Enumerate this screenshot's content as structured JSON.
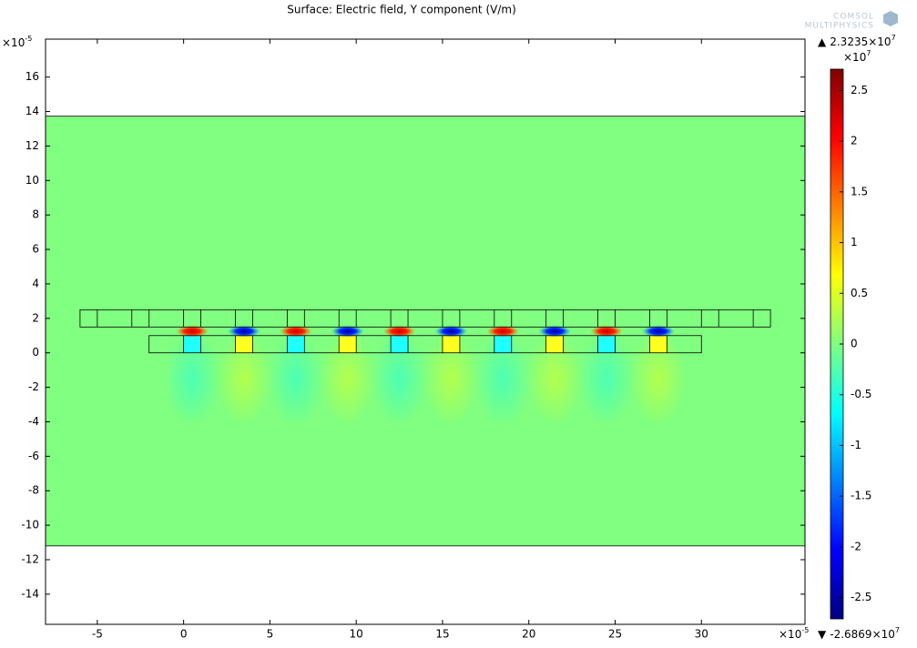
{
  "chart_data": {
    "type": "surface",
    "title": "Surface: Electric field, Y component (V/m)",
    "xlim": [
      -8,
      36
    ],
    "ylim": [
      -15.75,
      18.2
    ],
    "xticks": [
      -5,
      0,
      5,
      10,
      15,
      20,
      25,
      30
    ],
    "yticks": [
      -14,
      -12,
      -10,
      -8,
      -6,
      -4,
      -2,
      0,
      2,
      4,
      6,
      8,
      10,
      12,
      14,
      16
    ],
    "x_exponent": {
      "base": "×10",
      "power": -5
    },
    "y_exponent": {
      "base": "×10",
      "power": -5
    },
    "colorbar": {
      "clim": [
        -2.71,
        2.71
      ],
      "ticks": [
        -2.5,
        -2,
        -1.5,
        -1,
        -0.5,
        0,
        0.5,
        1,
        1.5,
        2,
        2.5
      ],
      "exponent": {
        "base": "×10",
        "power": 7
      },
      "max_marker": "▲",
      "max": 2.3235,
      "max_exponent": {
        "base": "×10",
        "power": 7
      },
      "min_marker": "▼",
      "min": -2.6869,
      "min_exponent": {
        "base": "×10",
        "power": 7
      }
    },
    "logo": [
      "COMSOL",
      "MULTIPHYSICS"
    ]
  }
}
